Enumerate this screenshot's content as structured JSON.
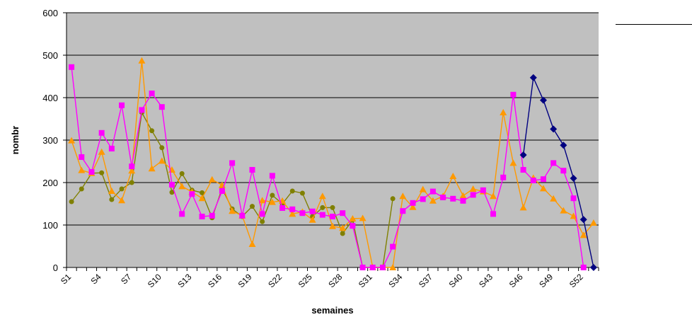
{
  "chart_data": {
    "type": "line",
    "title": "",
    "xlabel": "semaines",
    "ylabel": "nombr",
    "ylim": [
      0,
      600
    ],
    "yticks": [
      0,
      100,
      200,
      300,
      400,
      500,
      600
    ],
    "categories": [
      "S1",
      "S2",
      "S3",
      "S4",
      "S5",
      "S6",
      "S7",
      "S8",
      "S9",
      "S10",
      "S11",
      "S12",
      "S13",
      "S14",
      "S15",
      "S16",
      "S17",
      "S18",
      "S19",
      "S20",
      "S21",
      "S22",
      "S23",
      "S24",
      "S25",
      "S26",
      "S27",
      "S28",
      "S29",
      "S30",
      "S31",
      "S32",
      "S33",
      "S34",
      "S35",
      "S36",
      "S37",
      "S38",
      "S39",
      "S40",
      "S41",
      "S42",
      "S43",
      "S44",
      "S45",
      "S46",
      "S47",
      "S48",
      "S49",
      "S50",
      "S51",
      "S52",
      "S53"
    ],
    "x_tick_labels": [
      "S1",
      "S4",
      "S7",
      "S10",
      "S13",
      "S16",
      "S19",
      "S22",
      "S25",
      "S28",
      "S31",
      "S34",
      "S37",
      "S40",
      "S43",
      "S46",
      "S49",
      "S52"
    ],
    "plot_background": "#c0c0c0",
    "grid": true,
    "series": [
      {
        "color": "#808000",
        "marker": "circle",
        "values": [
          155,
          185,
          222,
          223,
          160,
          185,
          200,
          365,
          322,
          282,
          177,
          221,
          182,
          176,
          117,
          186,
          138,
          120,
          144,
          108,
          170,
          150,
          180,
          175,
          120,
          141,
          141,
          80,
          112,
          0,
          0,
          0,
          162,
          null,
          null,
          null,
          null,
          null,
          null,
          null,
          null,
          null,
          null,
          null,
          null,
          null,
          null,
          null,
          null,
          null,
          null,
          null,
          null
        ]
      },
      {
        "color": "#ff9900",
        "marker": "triangle",
        "values": [
          299,
          229,
          222,
          272,
          180,
          158,
          228,
          487,
          233,
          251,
          230,
          191,
          178,
          163,
          207,
          194,
          133,
          122,
          55,
          158,
          154,
          157,
          126,
          131,
          112,
          168,
          97,
          93,
          115,
          116,
          0,
          0,
          0,
          168,
          142,
          184,
          157,
          168,
          215,
          169,
          185,
          179,
          168,
          365,
          246,
          141,
          211,
          186,
          162,
          134,
          121,
          76,
          105
        ]
      },
      {
        "color": "#ff00ff",
        "marker": "square",
        "values": [
          472,
          260,
          225,
          317,
          280,
          382,
          238,
          371,
          410,
          378,
          195,
          126,
          173,
          120,
          122,
          180,
          246,
          122,
          230,
          126,
          216,
          140,
          137,
          128,
          132,
          124,
          120,
          128,
          98,
          0,
          0,
          0,
          49,
          133,
          152,
          161,
          179,
          165,
          162,
          157,
          171,
          182,
          126,
          212,
          407,
          230,
          205,
          208,
          246,
          228,
          163,
          0,
          null
        ]
      },
      {
        "color": "#000080",
        "marker": "diamond",
        "values": [
          null,
          null,
          null,
          null,
          null,
          null,
          null,
          null,
          null,
          null,
          null,
          null,
          null,
          null,
          null,
          null,
          null,
          null,
          null,
          null,
          null,
          null,
          null,
          null,
          null,
          null,
          null,
          null,
          null,
          null,
          null,
          null,
          null,
          null,
          null,
          null,
          null,
          null,
          null,
          null,
          null,
          null,
          null,
          null,
          null,
          265,
          447,
          394,
          326,
          288,
          210,
          113,
          0
        ]
      }
    ]
  }
}
